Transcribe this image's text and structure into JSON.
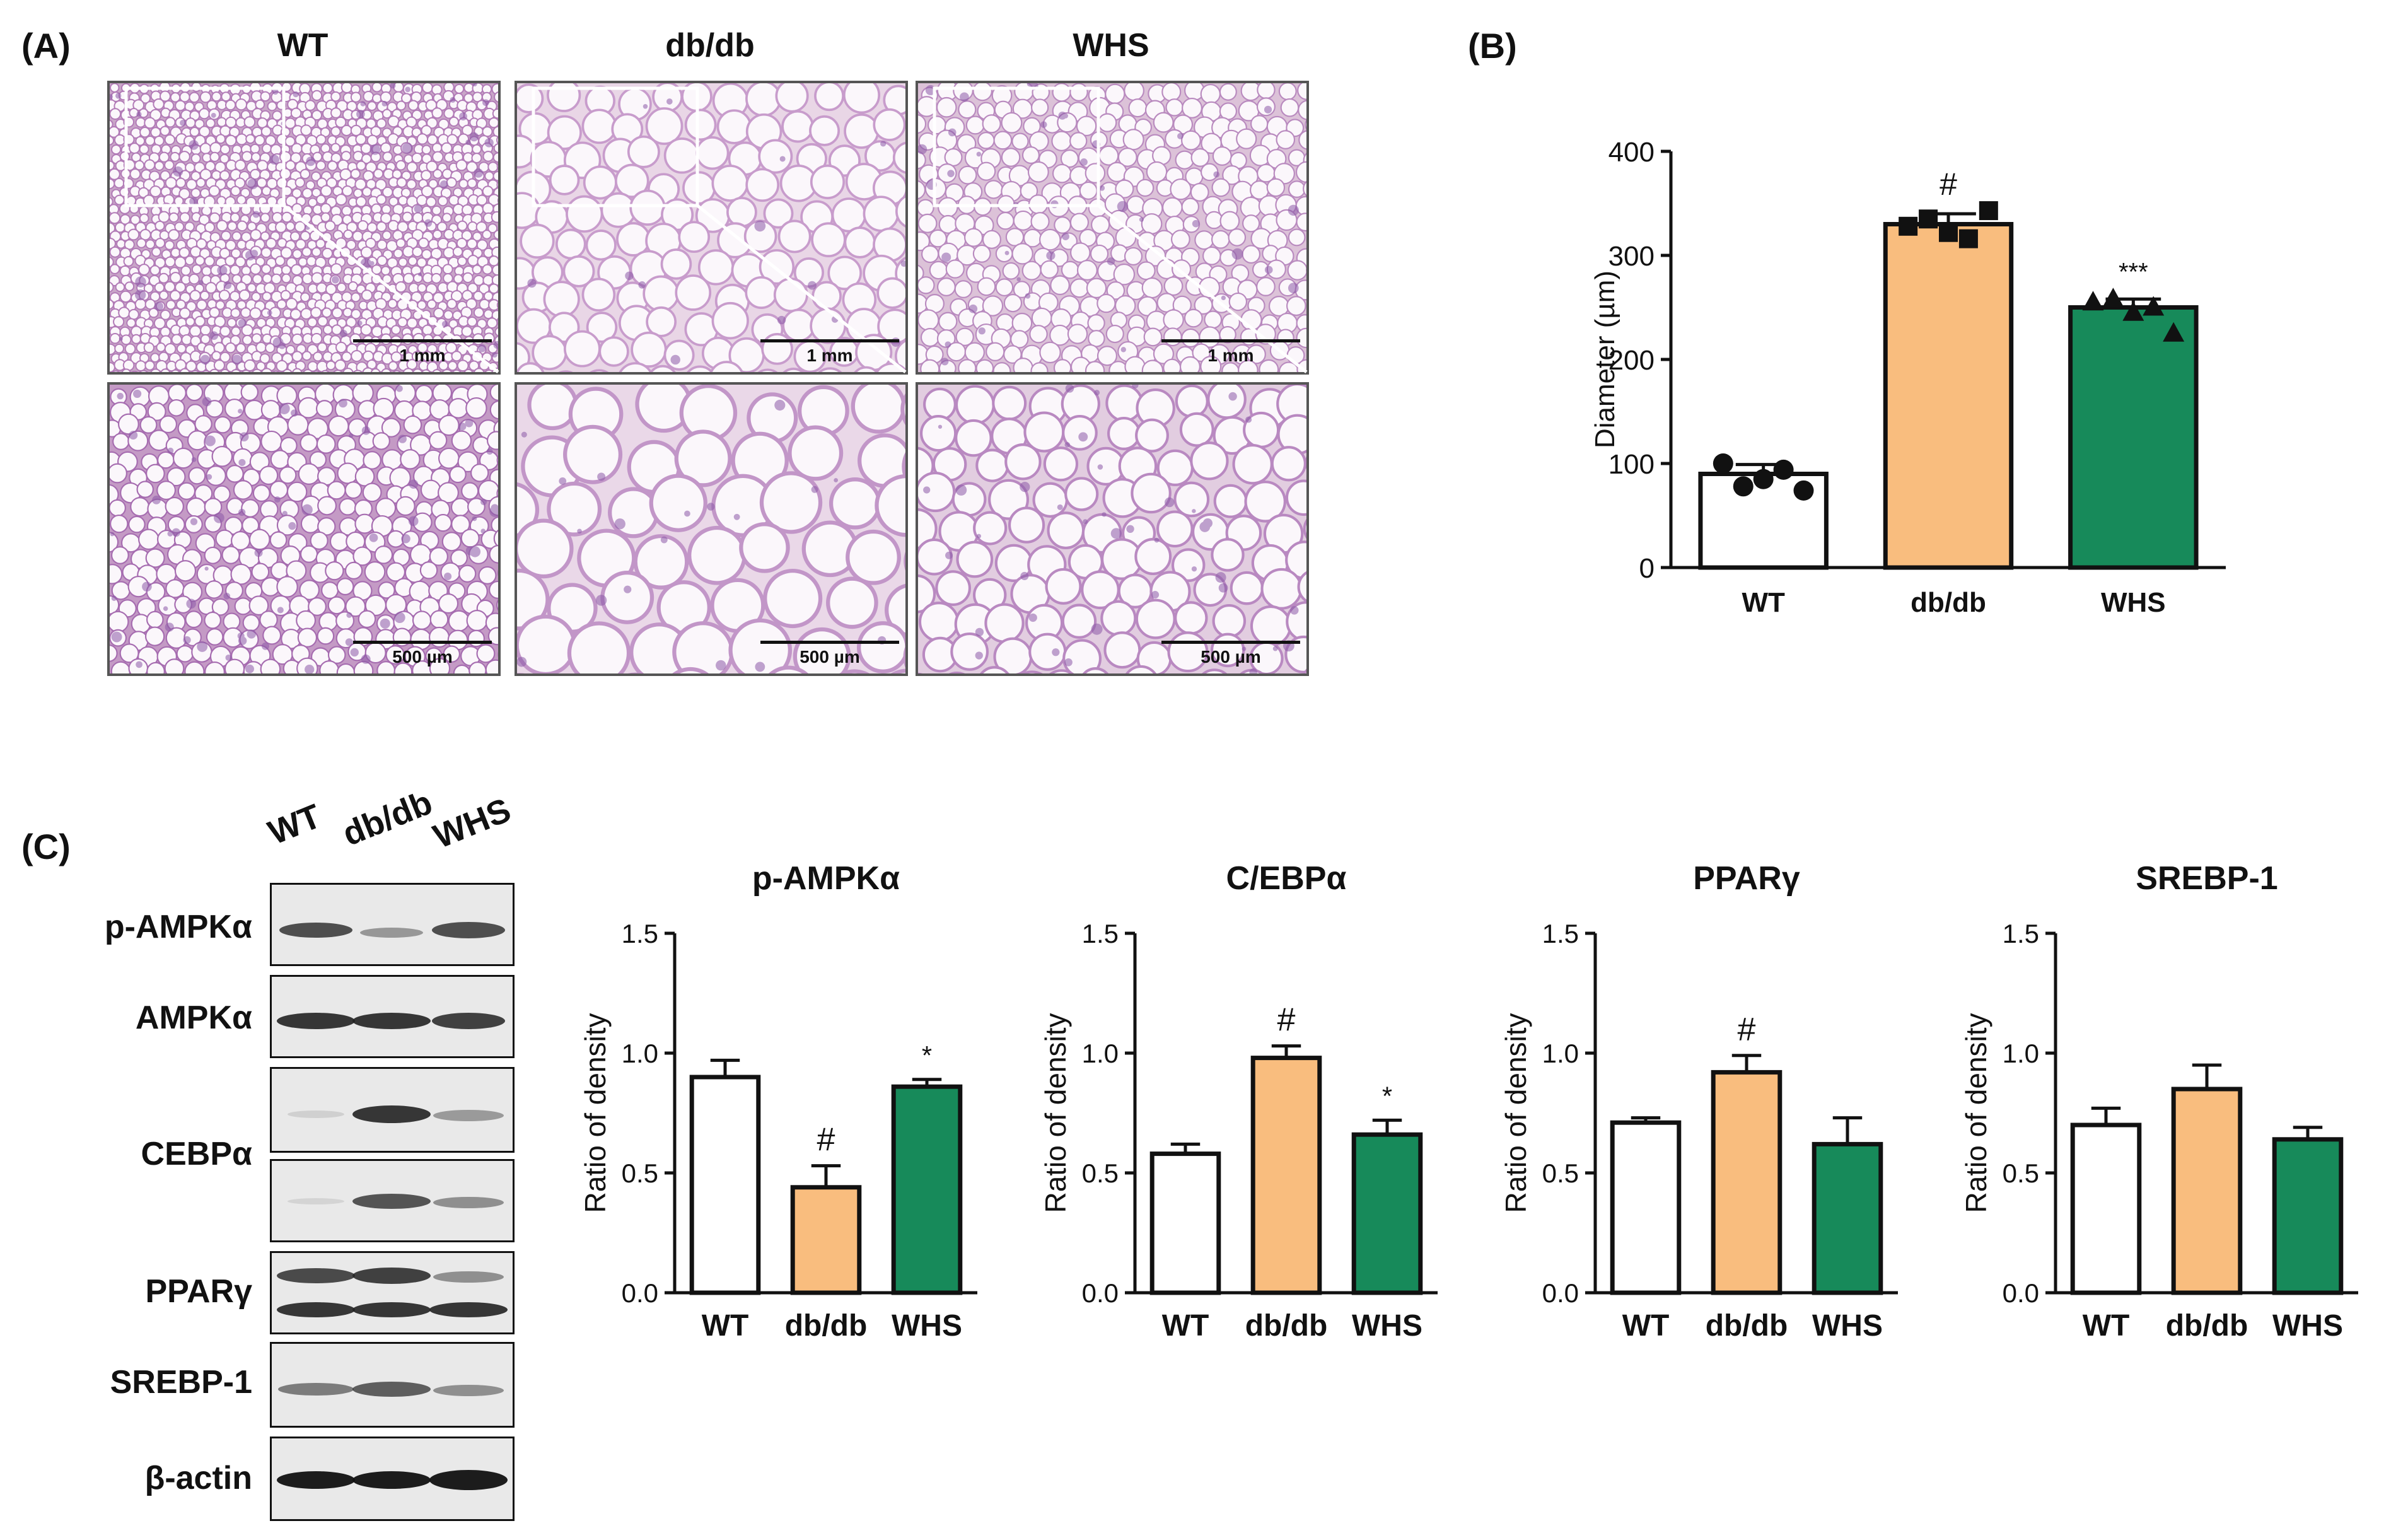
{
  "panel_a": {
    "letter": "(A)",
    "columns": [
      "WT",
      "db/db",
      "WHS"
    ],
    "scale_top": [
      "1 mm",
      "1 mm",
      "1 mm"
    ],
    "scale_bottom": [
      "500 µm",
      "500 µm",
      "500 µm"
    ]
  },
  "panel_b": {
    "letter": "(B)"
  },
  "panel_c": {
    "letter": "(C)",
    "lanes": [
      "WT",
      "db/db",
      "WHS"
    ],
    "blot_labels": [
      "p-AMPKα",
      "AMPKα",
      "CEBPα",
      "PPARγ",
      "SREBP-1",
      "β-actin"
    ]
  },
  "colors": {
    "wt": "#ffffff",
    "dbdb": "#f9bd7e",
    "whs": "#178a5a",
    "axis": "#111111"
  },
  "chart_data": [
    {
      "type": "bar",
      "title": "",
      "ylabel": "Diameter (µm)",
      "categories": [
        "WT",
        "db/db",
        "WHS"
      ],
      "values": [
        90,
        330,
        250
      ],
      "errors": [
        9,
        10,
        8
      ],
      "ylim": [
        0,
        400
      ],
      "yticks": [
        0,
        100,
        200,
        300,
        400
      ],
      "annotations": [
        "",
        "#",
        "***"
      ],
      "points": [
        [
          100,
          78,
          85,
          94,
          74
        ],
        [
          328,
          335,
          322,
          316,
          343
        ],
        [
          255,
          258,
          245,
          250,
          225
        ]
      ],
      "markers": [
        "circle",
        "square",
        "triangle"
      ]
    },
    {
      "type": "bar",
      "title": "p-AMPKα",
      "ylabel": "Ratio of density",
      "categories": [
        "WT",
        "db/db",
        "WHS"
      ],
      "values": [
        0.9,
        0.44,
        0.86
      ],
      "errors": [
        0.07,
        0.09,
        0.03
      ],
      "ylim": [
        0,
        1.5
      ],
      "yticks": [
        "0.0",
        "0.5",
        "1.0",
        "1.5"
      ],
      "annotations": [
        "",
        "#",
        "*"
      ]
    },
    {
      "type": "bar",
      "title": "C/EBPα",
      "ylabel": "Ratio of density",
      "categories": [
        "WT",
        "db/db",
        "WHS"
      ],
      "values": [
        0.58,
        0.98,
        0.66
      ],
      "errors": [
        0.04,
        0.05,
        0.06
      ],
      "ylim": [
        0,
        1.5
      ],
      "yticks": [
        "0.0",
        "0.5",
        "1.0",
        "1.5"
      ],
      "annotations": [
        "",
        "#",
        "*"
      ]
    },
    {
      "type": "bar",
      "title": "PPARγ",
      "ylabel": "Ratio of density",
      "categories": [
        "WT",
        "db/db",
        "WHS"
      ],
      "values": [
        0.71,
        0.92,
        0.62
      ],
      "errors": [
        0.02,
        0.07,
        0.11
      ],
      "ylim": [
        0,
        1.5
      ],
      "yticks": [
        "0.0",
        "0.5",
        "1.0",
        "1.5"
      ],
      "annotations": [
        "",
        "#",
        ""
      ]
    },
    {
      "type": "bar",
      "title": "SREBP-1",
      "ylabel": "Ratio of density",
      "categories": [
        "WT",
        "db/db",
        "WHS"
      ],
      "values": [
        0.7,
        0.85,
        0.64
      ],
      "errors": [
        0.07,
        0.1,
        0.05
      ],
      "ylim": [
        0,
        1.5
      ],
      "yticks": [
        "0.0",
        "0.5",
        "1.0",
        "1.5"
      ],
      "annotations": [
        "",
        "",
        ""
      ]
    }
  ]
}
